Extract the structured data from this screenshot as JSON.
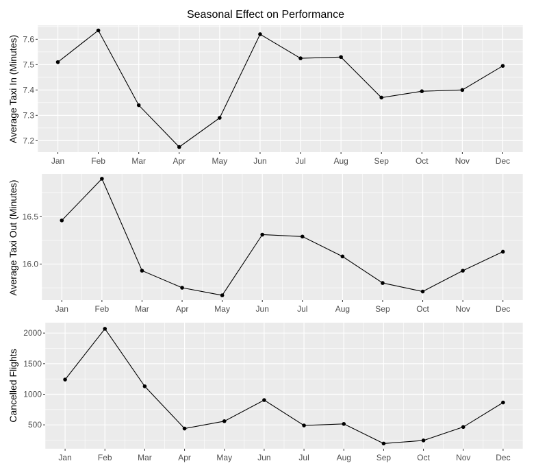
{
  "title": "Seasonal Effect on Performance",
  "colors": {
    "panel_bg": "#ebebeb",
    "grid_major": "#ffffff",
    "line": "#000000",
    "point": "#000000",
    "tick_text": "#4d4d4d",
    "tick_mark": "#333333"
  },
  "chart_data": [
    {
      "type": "line",
      "title": "Seasonal Effect on Performance",
      "xlabel": "",
      "ylabel": "Average Taxi In (Minutes)",
      "categories": [
        "Jan",
        "Feb",
        "Mar",
        "Apr",
        "May",
        "Jun",
        "Jul",
        "Aug",
        "Sep",
        "Oct",
        "Nov",
        "Dec"
      ],
      "values": [
        7.51,
        7.635,
        7.34,
        7.175,
        7.29,
        7.62,
        7.525,
        7.53,
        7.37,
        7.395,
        7.4,
        7.495
      ],
      "ylim": [
        7.155,
        7.655
      ],
      "yticks": [
        7.2,
        7.3,
        7.4,
        7.5,
        7.6
      ],
      "ytick_labels": [
        "7.2",
        "7.3",
        "7.4",
        "7.5",
        "7.6"
      ],
      "grid": true
    },
    {
      "type": "line",
      "xlabel": "",
      "ylabel": "Average Taxi Out (Minutes)",
      "categories": [
        "Jan",
        "Feb",
        "Mar",
        "Apr",
        "May",
        "Jun",
        "Jul",
        "Aug",
        "Sep",
        "Oct",
        "Nov",
        "Dec"
      ],
      "values": [
        16.46,
        16.9,
        15.93,
        15.75,
        15.67,
        16.31,
        16.29,
        16.08,
        15.8,
        15.71,
        15.93,
        16.13
      ],
      "ylim": [
        15.62,
        16.95
      ],
      "yticks": [
        16.0,
        16.5
      ],
      "ytick_labels": [
        "16.0",
        "16.5"
      ],
      "grid": true
    },
    {
      "type": "line",
      "xlabel": "",
      "ylabel": "Cancelled Flights",
      "categories": [
        "Jan",
        "Feb",
        "Mar",
        "Apr",
        "May",
        "Jun",
        "Jul",
        "Aug",
        "Sep",
        "Oct",
        "Nov",
        "Dec"
      ],
      "values": [
        1240,
        2070,
        1130,
        440,
        560,
        905,
        490,
        515,
        195,
        245,
        465,
        865
      ],
      "ylim": [
        110,
        2170
      ],
      "yticks": [
        500,
        1000,
        1500,
        2000
      ],
      "ytick_labels": [
        "500",
        "1000",
        "1500",
        "2000"
      ],
      "grid": true
    }
  ]
}
